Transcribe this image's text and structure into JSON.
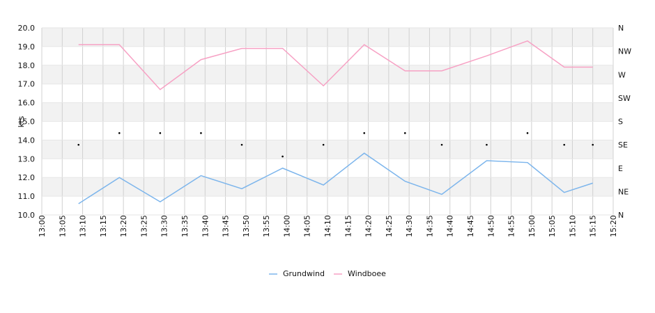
{
  "chart_data": {
    "type": "line",
    "ylabel": "kts",
    "ylim": [
      10.0,
      20.0
    ],
    "yticks": [
      "10.0",
      "11.0",
      "12.0",
      "13.0",
      "14.0",
      "15.0",
      "16.0",
      "17.0",
      "18.0",
      "19.0",
      "20.0"
    ],
    "xticks": [
      "13:00",
      "13:05",
      "13:10",
      "13:15",
      "13:20",
      "13:25",
      "13:30",
      "13:35",
      "13:40",
      "13:45",
      "13:50",
      "13:55",
      "14:00",
      "14:05",
      "14:10",
      "14:15",
      "14:20",
      "14:25",
      "14:30",
      "14:35",
      "14:40",
      "14:45",
      "14:50",
      "14:55",
      "15:00",
      "15:05",
      "15:10",
      "15:15",
      "15:20"
    ],
    "xrange_minutes": [
      0,
      140
    ],
    "right_axis_labels": [
      "N",
      "NE",
      "E",
      "SE",
      "S",
      "SW",
      "W",
      "NW",
      "N"
    ],
    "grid": true,
    "legend_position": "bottom",
    "series": [
      {
        "name": "Grundwind",
        "color": "#7cb5ec",
        "x": [
          "13:09",
          "13:19",
          "13:29",
          "13:39",
          "13:49",
          "13:59",
          "14:09",
          "14:19",
          "14:29",
          "14:38",
          "14:49",
          "14:59",
          "15:08",
          "15:15"
        ],
        "values": [
          10.6,
          12.0,
          10.7,
          12.1,
          11.4,
          12.5,
          11.6,
          13.3,
          11.8,
          11.1,
          12.9,
          12.8,
          11.2,
          11.7
        ]
      },
      {
        "name": "Windboee",
        "color": "#f7a1c4",
        "x": [
          "13:09",
          "13:19",
          "13:29",
          "13:39",
          "13:49",
          "13:59",
          "14:09",
          "14:19",
          "14:29",
          "14:38",
          "14:49",
          "14:59",
          "15:08",
          "15:15"
        ],
        "values": [
          19.1,
          19.1,
          16.7,
          18.3,
          18.9,
          18.9,
          16.9,
          19.1,
          17.7,
          17.7,
          18.5,
          19.3,
          17.9,
          17.9
        ]
      },
      {
        "name": "direction",
        "color": "#000000",
        "x": [
          "13:09",
          "13:19",
          "13:29",
          "13:39",
          "13:49",
          "13:59",
          "14:09",
          "14:19",
          "14:29",
          "14:38",
          "14:49",
          "14:59",
          "15:08",
          "15:15"
        ],
        "values": [
          13.75,
          14.375,
          14.375,
          14.375,
          13.75,
          13.125,
          13.75,
          14.375,
          14.375,
          13.75,
          13.75,
          14.375,
          13.75,
          13.75
        ]
      }
    ]
  }
}
